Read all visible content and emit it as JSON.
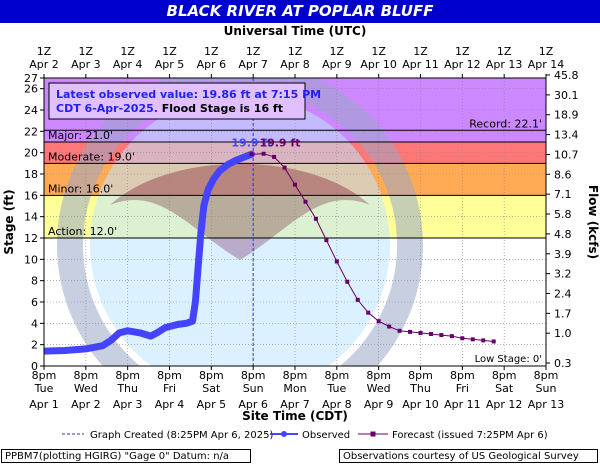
{
  "title": "BLACK RIVER AT POPLAR BLUFF",
  "top_axis_title": "Universal Time (UTC)",
  "bottom_axis_title": "Site Time (CDT)",
  "left_axis_title": "Stage (ft)",
  "right_axis_title": "Flow (kcfs)",
  "colors": {
    "title_bar": "#0000cc",
    "observed": "#4444ff",
    "forecast": "#660066",
    "major_band": "#cc88ff",
    "moderate_band": "#ff7777",
    "minor_band": "#ffaa55",
    "action_band": "#ffff99",
    "below_action": "#ffffff",
    "plot_bg_top": "#d9a0ff"
  },
  "info_box": {
    "line1": "Latest observed value: 19.86 ft at 7:15 PM",
    "line2a": "CDT 6-Apr-2025.",
    "line2b": " Flood Stage is 16 ft"
  },
  "legend": {
    "created": "Graph Created (8:25PM Apr 6, 2025)",
    "observed": "Observed",
    "forecast": "Forecast (issued 7:25PM Apr 6)"
  },
  "footer": {
    "left": "PPBM7(plotting HGIRG) \"Gage 0\" Datum: n/a",
    "right": "Observations courtesy of US Geological Survey"
  },
  "chart_data": {
    "type": "line",
    "x_unit": "days from 8pm CDT Apr 1",
    "x_range": [
      0,
      12
    ],
    "y_range": [
      0,
      27
    ],
    "y_ticks": [
      0,
      2,
      4,
      6,
      8,
      10,
      12,
      14,
      16,
      18,
      20,
      22,
      24,
      26,
      27
    ],
    "bottom_ticks": [
      {
        "time": "8pm",
        "day": "Tue",
        "date": "Apr 1"
      },
      {
        "time": "8pm",
        "day": "Wed",
        "date": "Apr 2"
      },
      {
        "time": "8pm",
        "day": "Thu",
        "date": "Apr 3"
      },
      {
        "time": "8pm",
        "day": "Fri",
        "date": "Apr 4"
      },
      {
        "time": "8pm",
        "day": "Sat",
        "date": "Apr 5"
      },
      {
        "time": "8pm",
        "day": "Sun",
        "date": "Apr 6"
      },
      {
        "time": "8pm",
        "day": "Mon",
        "date": "Apr 7"
      },
      {
        "time": "8pm",
        "day": "Tue",
        "date": "Apr 8"
      },
      {
        "time": "8pm",
        "day": "Wed",
        "date": "Apr 9"
      },
      {
        "time": "8pm",
        "day": "Thu",
        "date": "Apr 10"
      },
      {
        "time": "8pm",
        "day": "Fri",
        "date": "Apr 11"
      },
      {
        "time": "8pm",
        "day": "Sat",
        "date": "Apr 12"
      },
      {
        "time": "8pm",
        "day": "Sun",
        "date": "Apr 13"
      }
    ],
    "top_ticks": [
      {
        "time": "1Z",
        "date": "Apr 2"
      },
      {
        "time": "1Z",
        "date": "Apr 3"
      },
      {
        "time": "1Z",
        "date": "Apr 4"
      },
      {
        "time": "1Z",
        "date": "Apr 5"
      },
      {
        "time": "1Z",
        "date": "Apr 6"
      },
      {
        "time": "1Z",
        "date": "Apr 7"
      },
      {
        "time": "1Z",
        "date": "Apr 8"
      },
      {
        "time": "1Z",
        "date": "Apr 9"
      },
      {
        "time": "1Z",
        "date": "Apr 10"
      },
      {
        "time": "1Z",
        "date": "Apr 11"
      },
      {
        "time": "1Z",
        "date": "Apr 12"
      },
      {
        "time": "1Z",
        "date": "Apr 13"
      },
      {
        "time": "1Z",
        "date": "Apr 14"
      }
    ],
    "flow_ticks": [
      {
        "stage": 1,
        "label": "0.3"
      },
      {
        "stage": 4,
        "label": "1.0"
      },
      {
        "stage": 6,
        "label": "1.7"
      },
      {
        "stage": 8,
        "label": "2.4"
      },
      {
        "stage": 10,
        "label": "3.2"
      },
      {
        "stage": 12,
        "label": "3.9"
      },
      {
        "stage": 14,
        "label": "4.8"
      },
      {
        "stage": 16,
        "label": "5.8"
      },
      {
        "stage": 18,
        "label": "7.1"
      },
      {
        "stage": 20,
        "label": "8.6"
      },
      {
        "stage": 22,
        "label": "10.7"
      },
      {
        "stage": 24,
        "label": "13.4"
      },
      {
        "stage": 26,
        "label": "18.9"
      },
      {
        "stage": 28,
        "label": "30.1"
      },
      {
        "stage": 30,
        "label": "45.8"
      }
    ],
    "flood_categories": [
      {
        "name": "Major",
        "label": "Major: 21.0'",
        "stage": 21.0
      },
      {
        "name": "Moderate",
        "label": "Moderate: 19.0'",
        "stage": 19.0
      },
      {
        "name": "Minor",
        "label": "Minor: 16.0'",
        "stage": 16.0
      },
      {
        "name": "Action",
        "label": "Action: 12.0'",
        "stage": 12.0
      }
    ],
    "record": {
      "label": "Record: 22.1'",
      "stage": 22.1
    },
    "low_stage": {
      "label": "Low Stage: 0'",
      "stage": 0
    },
    "created_x": 5.0,
    "observed": [
      {
        "x": 0.0,
        "y": 1.4
      },
      {
        "x": 0.5,
        "y": 1.45
      },
      {
        "x": 1.0,
        "y": 1.6
      },
      {
        "x": 1.4,
        "y": 1.9
      },
      {
        "x": 1.6,
        "y": 2.4
      },
      {
        "x": 1.8,
        "y": 3.1
      },
      {
        "x": 2.0,
        "y": 3.3
      },
      {
        "x": 2.3,
        "y": 3.1
      },
      {
        "x": 2.55,
        "y": 2.8
      },
      {
        "x": 2.7,
        "y": 3.1
      },
      {
        "x": 2.9,
        "y": 3.6
      },
      {
        "x": 3.2,
        "y": 3.9
      },
      {
        "x": 3.4,
        "y": 4.0
      },
      {
        "x": 3.55,
        "y": 4.2
      },
      {
        "x": 3.62,
        "y": 6.0
      },
      {
        "x": 3.68,
        "y": 9.0
      },
      {
        "x": 3.75,
        "y": 12.5
      },
      {
        "x": 3.82,
        "y": 15.0
      },
      {
        "x": 3.92,
        "y": 16.5
      },
      {
        "x": 4.05,
        "y": 17.5
      },
      {
        "x": 4.2,
        "y": 18.3
      },
      {
        "x": 4.4,
        "y": 18.9
      },
      {
        "x": 4.6,
        "y": 19.3
      },
      {
        "x": 4.8,
        "y": 19.6
      },
      {
        "x": 4.96,
        "y": 19.86
      }
    ],
    "observed_label": {
      "x": 4.48,
      "y": 20.6,
      "text": "19.9 ft"
    },
    "forecast": [
      {
        "x": 4.96,
        "y": 19.86
      },
      {
        "x": 5.25,
        "y": 19.9
      },
      {
        "x": 5.5,
        "y": 19.6
      },
      {
        "x": 5.75,
        "y": 18.6
      },
      {
        "x": 6.0,
        "y": 17.0
      },
      {
        "x": 6.25,
        "y": 15.4
      },
      {
        "x": 6.5,
        "y": 13.8
      },
      {
        "x": 6.75,
        "y": 11.8
      },
      {
        "x": 7.0,
        "y": 9.8
      },
      {
        "x": 7.25,
        "y": 7.9
      },
      {
        "x": 7.5,
        "y": 6.2
      },
      {
        "x": 7.75,
        "y": 5.0
      },
      {
        "x": 8.0,
        "y": 4.2
      },
      {
        "x": 8.25,
        "y": 3.7
      },
      {
        "x": 8.5,
        "y": 3.3
      },
      {
        "x": 8.75,
        "y": 3.2
      },
      {
        "x": 9.0,
        "y": 3.1
      },
      {
        "x": 9.25,
        "y": 3.0
      },
      {
        "x": 9.5,
        "y": 2.9
      },
      {
        "x": 9.75,
        "y": 2.8
      },
      {
        "x": 10.0,
        "y": 2.6
      },
      {
        "x": 10.25,
        "y": 2.5
      },
      {
        "x": 10.5,
        "y": 2.4
      },
      {
        "x": 10.75,
        "y": 2.3
      }
    ],
    "forecast_label": {
      "x": 5.15,
      "y": 20.6,
      "text": "19.9 ft"
    }
  }
}
